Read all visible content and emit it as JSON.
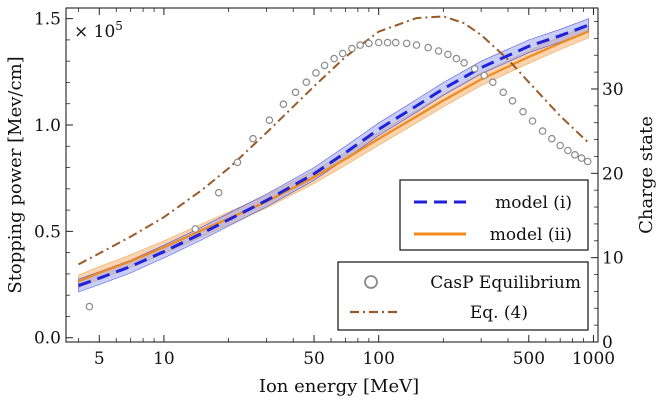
{
  "chart_data": {
    "type": "line",
    "xlabel": "Ion energy [MeV]",
    "ylabel": "Stopping power [Mev/cm]",
    "y2label": "Charge state",
    "x_scale": "log",
    "xlim": [
      3.5,
      1050
    ],
    "ylim": [
      -0.02,
      1.55
    ],
    "y2lim": [
      0,
      39.6
    ],
    "y_multiplier": "× 10",
    "y_multiplier_exp": "5",
    "x_ticks": [
      5,
      10,
      50,
      100,
      500,
      1000
    ],
    "x_tick_labels": [
      "5",
      "10",
      "50",
      "100",
      "500",
      "1000"
    ],
    "y_ticks": [
      0.0,
      0.5,
      1.0,
      1.5
    ],
    "y_tick_labels": [
      "0.0",
      "0.5",
      "1.0",
      "1.5"
    ],
    "y2_ticks": [
      0,
      10,
      20,
      30
    ],
    "y2_tick_labels": [
      "0",
      "10",
      "20",
      "30"
    ],
    "grid": false,
    "legend_placement": "right",
    "series": [
      {
        "name": "model (i)",
        "style": "dashed",
        "color": "#1f22d8",
        "band_color": "#9aa6ee",
        "x": [
          4,
          5,
          7,
          10,
          15,
          20,
          30,
          50,
          70,
          100,
          150,
          200,
          300,
          500,
          700,
          950
        ],
        "y": [
          0.245,
          0.28,
          0.335,
          0.405,
          0.49,
          0.555,
          0.645,
          0.77,
          0.87,
          0.98,
          1.09,
          1.17,
          1.27,
          1.37,
          1.42,
          1.47
        ],
        "band_half_width": 0.03
      },
      {
        "name": "model (ii)",
        "style": "solid",
        "color": "#f08a1e",
        "band_color": "#f6b87a",
        "x": [
          4,
          5,
          7,
          10,
          15,
          20,
          30,
          50,
          70,
          100,
          150,
          200,
          300,
          500,
          700,
          950
        ],
        "y": [
          0.265,
          0.305,
          0.36,
          0.425,
          0.505,
          0.56,
          0.64,
          0.755,
          0.84,
          0.935,
          1.04,
          1.115,
          1.215,
          1.32,
          1.385,
          1.44
        ],
        "band_half_width": 0.03
      },
      {
        "name": "CasP Equilibrium",
        "style": "markers",
        "color": "#8a8a8a",
        "axis": "right",
        "x": [
          4.5,
          14,
          18,
          22,
          26,
          31,
          36,
          41,
          46,
          51,
          56,
          62,
          68,
          75,
          82,
          90,
          100,
          110,
          120,
          135,
          150,
          170,
          190,
          210,
          230,
          250,
          280,
          310,
          340,
          380,
          420,
          470,
          520,
          580,
          640,
          700,
          760,
          820,
          880,
          940
        ],
        "y": [
          4.2,
          13.4,
          17.7,
          21.3,
          24.1,
          26.3,
          28.2,
          29.6,
          30.8,
          31.9,
          32.8,
          33.6,
          34.2,
          34.8,
          35.2,
          35.4,
          35.5,
          35.5,
          35.5,
          35.4,
          35.2,
          34.9,
          34.5,
          34.1,
          33.6,
          33.1,
          32.4,
          31.6,
          30.8,
          29.6,
          28.6,
          27.3,
          26.2,
          25.0,
          24.1,
          23.3,
          22.7,
          22.2,
          21.8,
          21.4
        ]
      },
      {
        "name": "Eq. (4)",
        "style": "dashdot",
        "color": "#9a5a28",
        "axis": "right",
        "x": [
          4,
          5,
          7,
          10,
          15,
          20,
          30,
          50,
          70,
          100,
          150,
          200,
          250,
          300,
          400,
          500,
          700,
          950
        ],
        "y": [
          9.2,
          10.5,
          12.5,
          14.8,
          18.0,
          20.6,
          24.8,
          30.3,
          33.8,
          36.8,
          38.4,
          38.6,
          37.8,
          36.4,
          33.5,
          30.8,
          26.8,
          23.6
        ]
      }
    ]
  }
}
